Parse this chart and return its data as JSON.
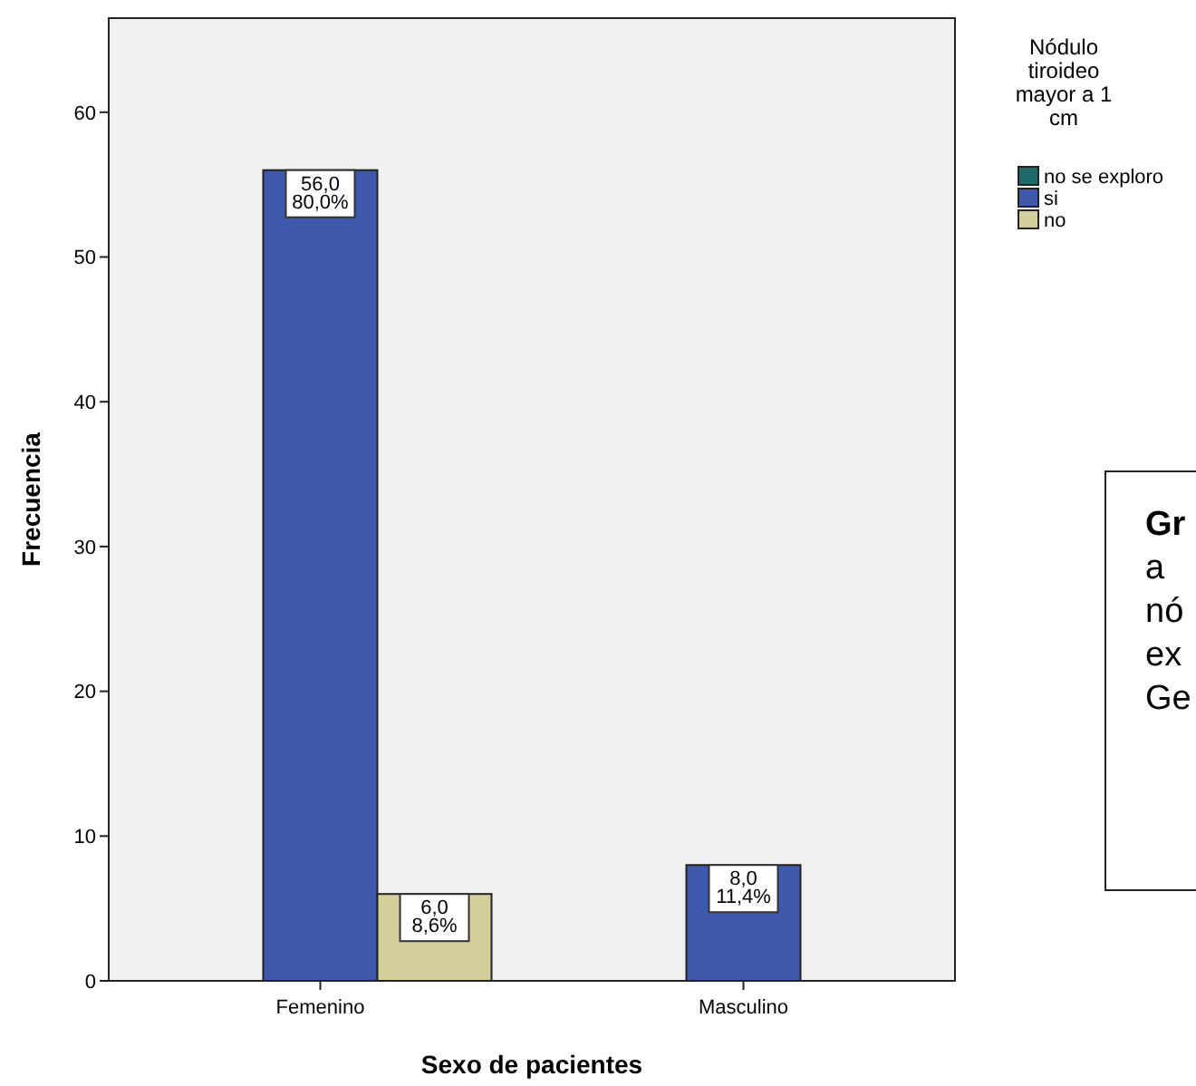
{
  "chart_data": {
    "type": "bar",
    "xlabel": "Sexo de pacientes",
    "ylabel": "Frecuencia",
    "legend_title": "Nódulo tiroideo mayor a 1 cm",
    "legend": "top right",
    "categories": [
      "Femenino",
      "Masculino"
    ],
    "ylim": [
      0,
      66.5
    ],
    "yticks": [
      0,
      10,
      20,
      30,
      40,
      50,
      60
    ],
    "grid": false,
    "series": [
      {
        "name": "no se exploro",
        "color": "#1f6b6b",
        "values": [
          null,
          null
        ],
        "value_labels": [
          null,
          null
        ]
      },
      {
        "name": "si",
        "color": "#3e58ac",
        "values": [
          56,
          8
        ],
        "value_labels": [
          "56,0\n80,0%",
          "8,0\n11,4%"
        ]
      },
      {
        "name": "no",
        "color": "#d4cf9a",
        "values": [
          6,
          null
        ],
        "value_labels": [
          "6,0\n8,6%",
          null
        ]
      }
    ],
    "annotations": [
      "Gr\na\nnó\nex\nGe"
    ]
  }
}
